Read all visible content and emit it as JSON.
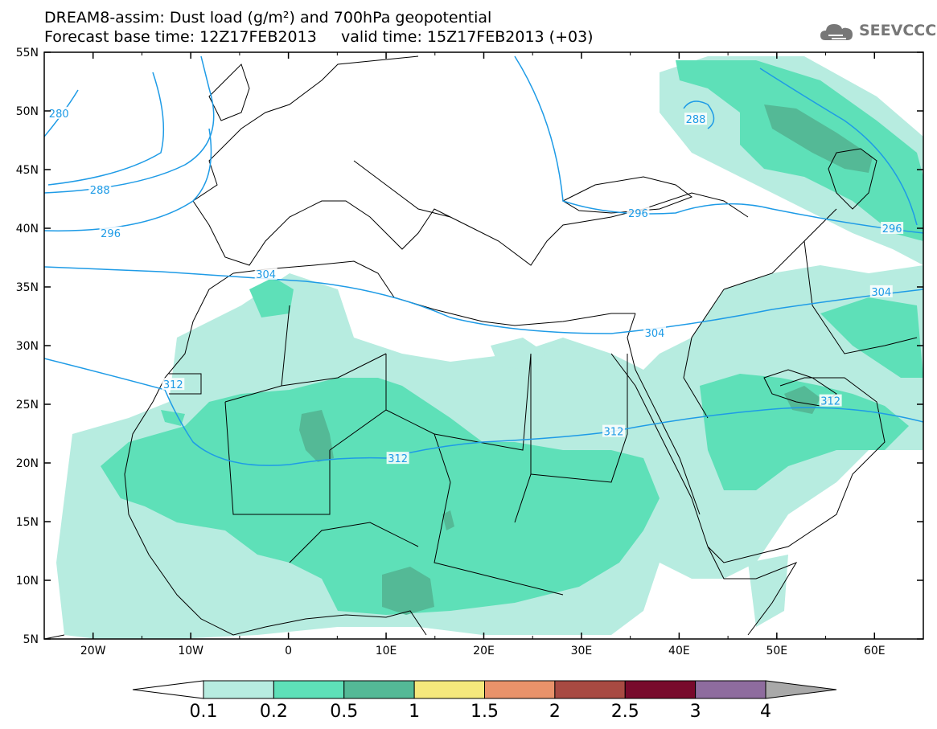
{
  "title": {
    "line1": "DREAM8-assim: Dust load (g/m²) and 700hPa geopotential",
    "line2": "Forecast base time: 12Z17FEB2013     valid time: 15Z17FEB2013 (+03)"
  },
  "logo": {
    "text": "SEEVCCC",
    "icon": "cloud-icon"
  },
  "axes": {
    "lon_ticks": [
      "20W",
      "10W",
      "0",
      "10E",
      "20E",
      "30E",
      "40E",
      "50E",
      "60E"
    ],
    "lon_values": [
      -20,
      -10,
      0,
      10,
      20,
      30,
      40,
      50,
      60
    ],
    "lat_ticks": [
      "55N",
      "50N",
      "45N",
      "40N",
      "35N",
      "30N",
      "25N",
      "20N",
      "15N",
      "10N",
      "5N"
    ],
    "lat_values": [
      55,
      50,
      45,
      40,
      35,
      30,
      25,
      20,
      15,
      10,
      5
    ],
    "lon_range": [
      -25,
      65
    ],
    "lat_range": [
      5,
      55
    ]
  },
  "contours": {
    "labels": [
      {
        "text": "280",
        "lon": -23.5,
        "lat": 49.8
      },
      {
        "text": "288",
        "lon": -19.3,
        "lat": 43.3
      },
      {
        "text": "296",
        "lon": -18.2,
        "lat": 39.6
      },
      {
        "text": "304",
        "lon": -2.3,
        "lat": 36.1
      },
      {
        "text": "312",
        "lon": -11.8,
        "lat": 26.7
      },
      {
        "text": "312",
        "lon": 11.2,
        "lat": 20.4
      },
      {
        "text": "312",
        "lon": 33.3,
        "lat": 22.7
      },
      {
        "text": "304",
        "lon": 37.5,
        "lat": 31.1
      },
      {
        "text": "296",
        "lon": 35.8,
        "lat": 41.3
      },
      {
        "text": "288",
        "lon": 41.7,
        "lat": 49.3
      },
      {
        "text": "304",
        "lon": 60.7,
        "lat": 34.6
      },
      {
        "text": "312",
        "lon": 55.5,
        "lat": 25.3
      },
      {
        "text": "296",
        "lon": 61.8,
        "lat": 40.0
      }
    ]
  },
  "colorbar": {
    "labels": [
      "0.1",
      "0.2",
      "0.5",
      "1",
      "1.5",
      "2",
      "2.5",
      "3",
      "4"
    ],
    "colors": [
      "#ffffff",
      "#b7ece0",
      "#5ee0b8",
      "#54b996",
      "#f5e87c",
      "#e9926a",
      "#a84a42",
      "#780a2c",
      "#8e6c9e",
      "#a9a9a9"
    ]
  },
  "colors": {
    "contour": "#1e9be6",
    "dust_low": "#b7ece0",
    "dust_mid": "#5ee0b8",
    "dust_high": "#54b996"
  }
}
